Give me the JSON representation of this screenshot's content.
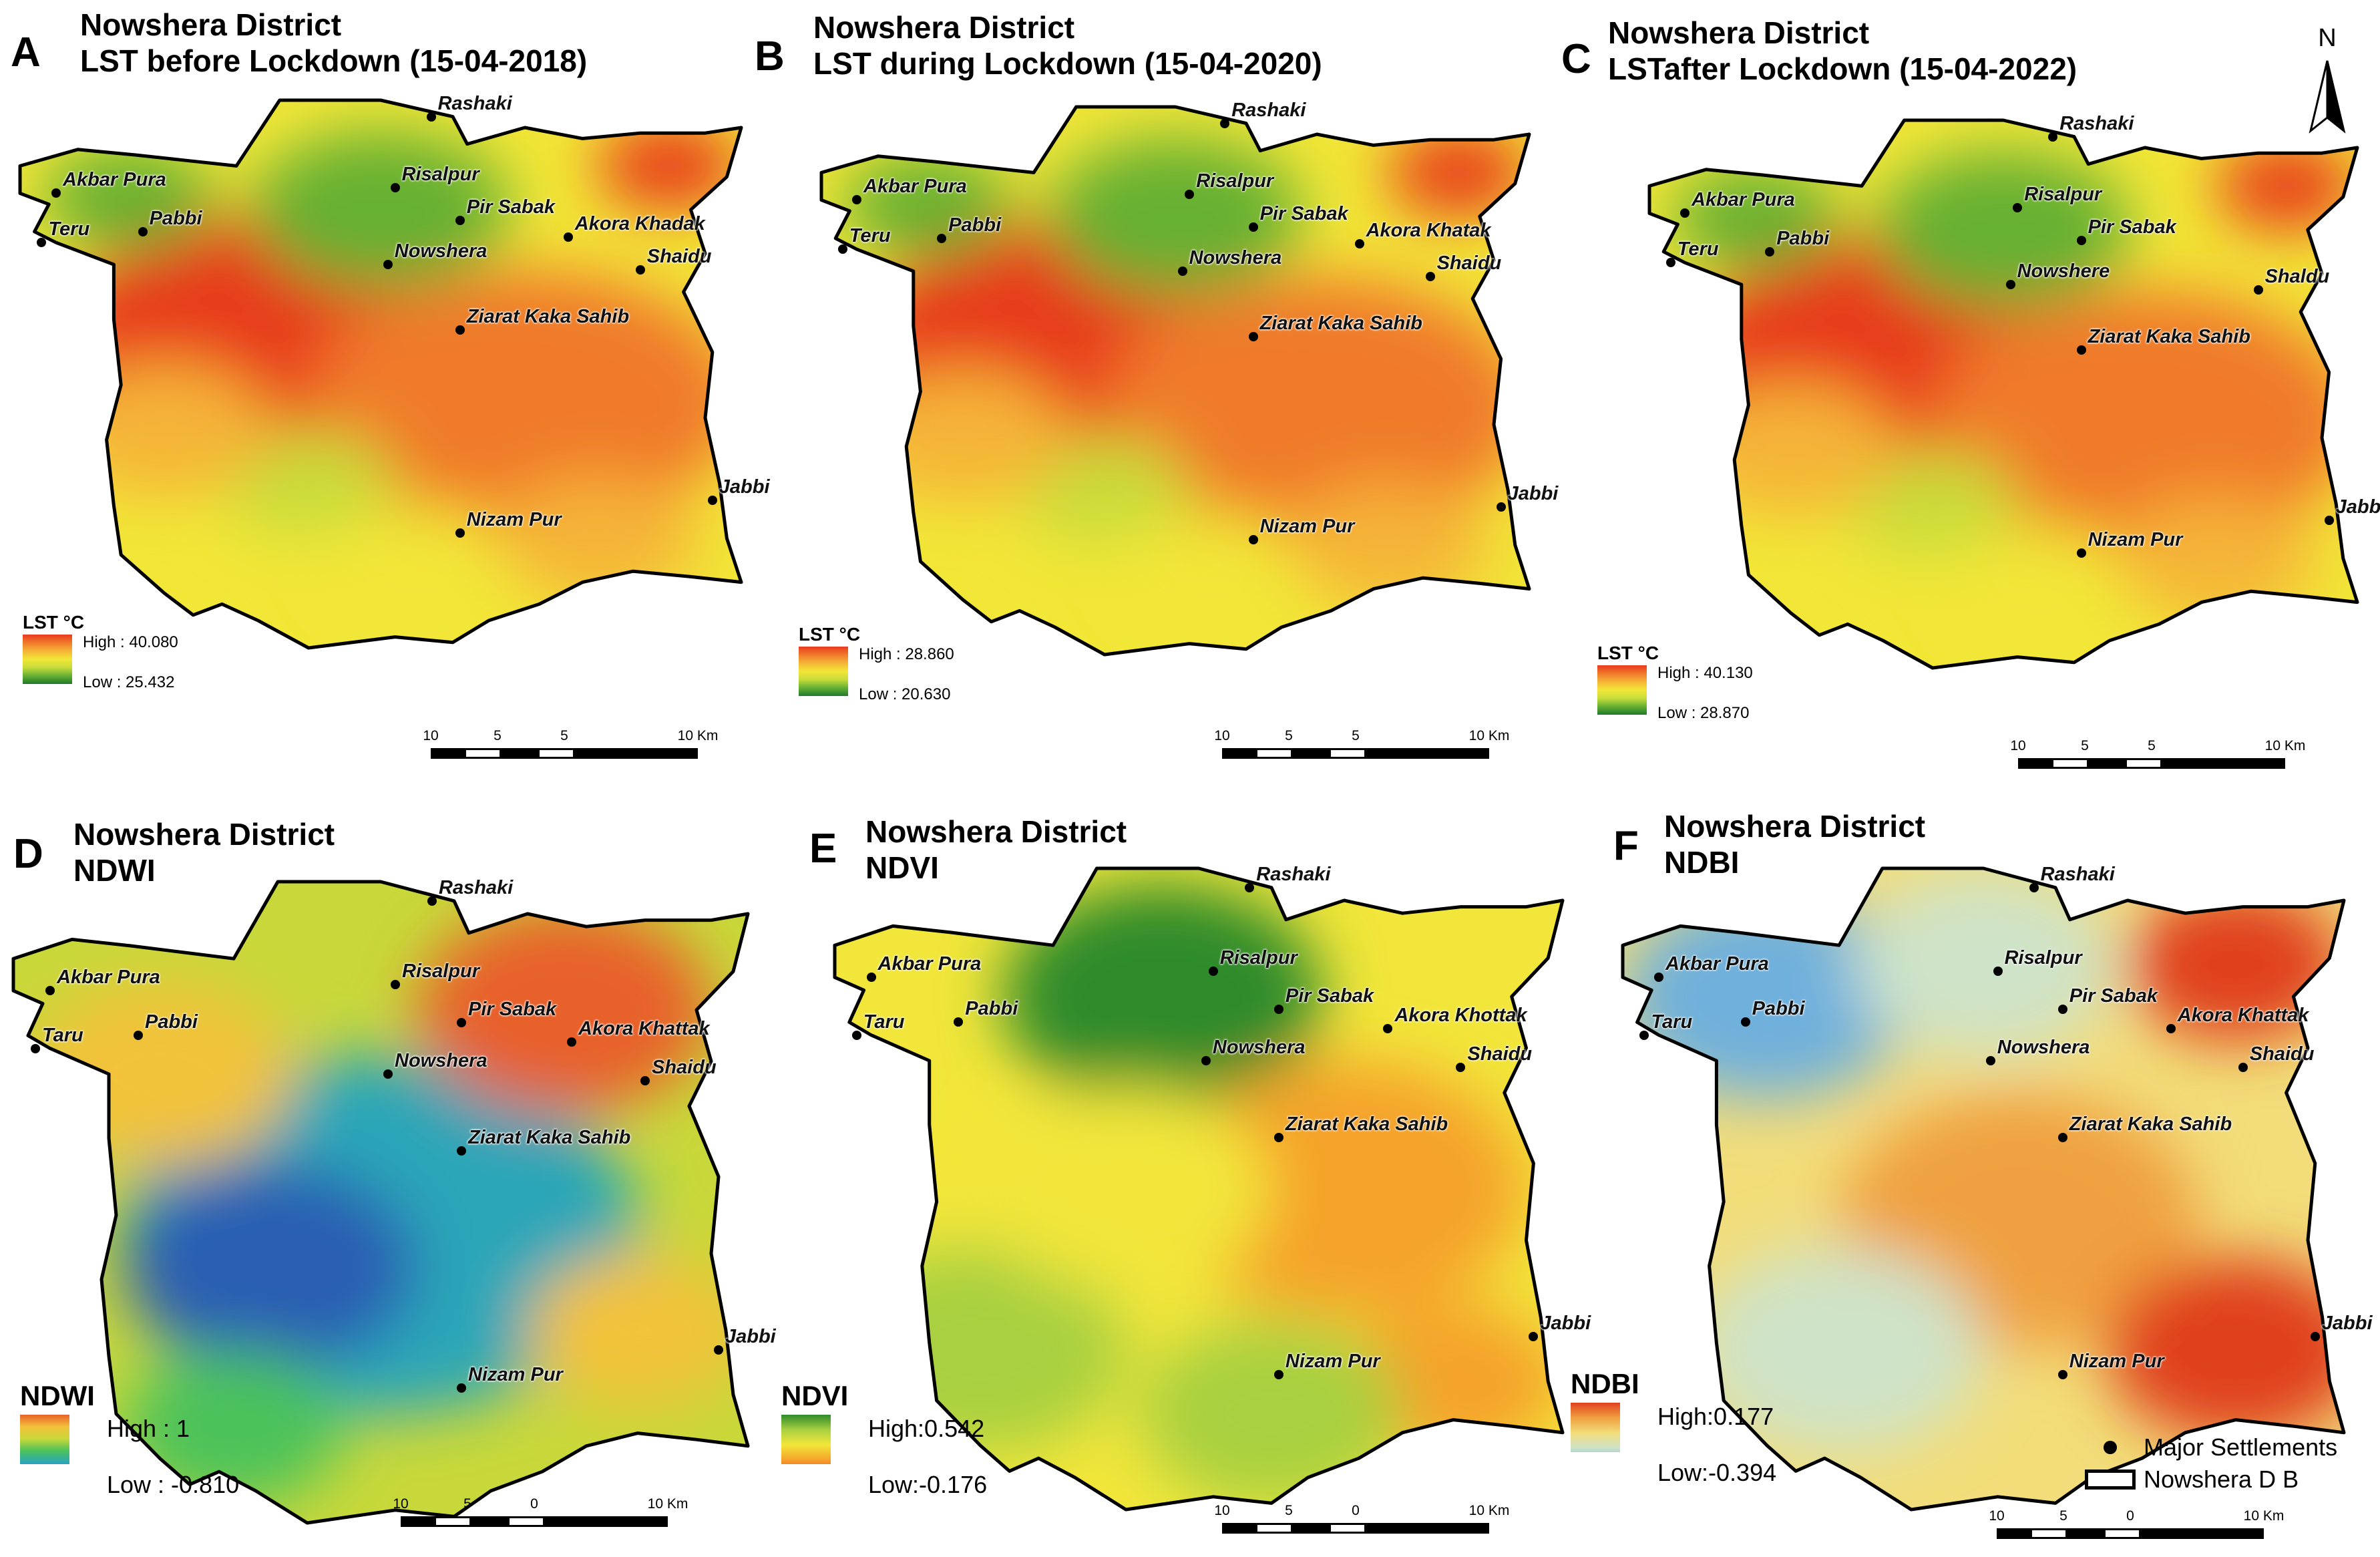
{
  "north_arrow": {
    "label": "N"
  },
  "panels": [
    {
      "id": "A",
      "letter": "A",
      "title_lines": [
        "Nowshera District",
        "LST before Lockdown (15-04-2018)"
      ],
      "palette": "lst",
      "legend": {
        "title": "LST °C",
        "high": "High : 40.080",
        "low": "Low : 25.432"
      },
      "scalebar": {
        "labels": [
          "10",
          "5",
          "5",
          "10 Km"
        ]
      }
    },
    {
      "id": "B",
      "letter": "B",
      "title_lines": [
        "Nowshera District",
        "LST during Lockdown (15-04-2020)"
      ],
      "palette": "lst",
      "legend": {
        "title": "LST °C",
        "high": "High : 28.860",
        "low": "Low : 20.630"
      },
      "scalebar": {
        "labels": [
          "10",
          "5",
          "5",
          "10 Km"
        ]
      }
    },
    {
      "id": "C",
      "letter": "C",
      "title_lines": [
        "Nowshera District",
        "LSTafter Lockdown (15-04-2022)"
      ],
      "palette": "lst",
      "legend": {
        "title": "LST °C",
        "high": "High : 40.130",
        "low": "Low : 28.870"
      },
      "scalebar": {
        "labels": [
          "10",
          "5",
          "5",
          "10 Km"
        ]
      }
    },
    {
      "id": "D",
      "letter": "D",
      "title_lines": [
        "Nowshera District",
        "NDWI"
      ],
      "palette": "ndwi",
      "legend": {
        "title": "NDWI",
        "high": "High : 1",
        "low": "Low : -0.810"
      },
      "scalebar": {
        "labels": [
          "10",
          "5",
          "0",
          "10 Km"
        ]
      }
    },
    {
      "id": "E",
      "letter": "E",
      "title_lines": [
        "Nowshera District",
        "NDVI"
      ],
      "palette": "ndvi",
      "legend": {
        "title": "NDVI",
        "high": "High:0.542",
        "low": "Low:-0.176"
      },
      "scalebar": {
        "labels": [
          "10",
          "5",
          "0",
          "10 Km"
        ]
      }
    },
    {
      "id": "F",
      "letter": "F",
      "title_lines": [
        "Nowshera District",
        "NDBI"
      ],
      "palette": "ndbi",
      "legend": {
        "title": "NDBI",
        "high": "High:0.177",
        "low": "Low:-0.394"
      },
      "scalebar": {
        "labels": [
          "10",
          "5",
          "0",
          "10 Km"
        ]
      }
    }
  ],
  "places_by_panel": {
    "A": [
      "Rashaki",
      "Risalpur",
      "Akbar Pura",
      "Pir Sabak",
      "Teru",
      "Pabbi",
      "Akora Khadak",
      "Nowshera",
      "Shaidu",
      "Ziarat Kaka Sahib",
      "Jabbi",
      "Nizam Pur"
    ],
    "B": [
      "Rashaki",
      "Risalpur",
      "Akbar Pura",
      "Pir Sabak",
      "Teru",
      "Pabbi",
      "Akora Khatak",
      "Nowshera",
      "Shaidu",
      "Ziarat Kaka Sahib",
      "Jabbi",
      "Nizam Pur"
    ],
    "C": [
      "Rashaki",
      "Risalpur",
      "Akbar Pura",
      "Pir Sabak",
      "Teru",
      "Pabbi",
      "Nowshere",
      "Shaldu",
      "Ziarat Kaka Sahib",
      "Jabbi",
      "Nizam Pur"
    ],
    "D": [
      "Rashaki",
      "Risalpur",
      "Akbar Pura",
      "Pir Sabak",
      "Taru",
      "Pabbi",
      "Akora Khattak",
      "Nowshera",
      "Shaidu",
      "Ziarat Kaka Sahib",
      "Jabbi",
      "Nizam Pur"
    ],
    "E": [
      "Rashaki",
      "Risalpur",
      "Akbar Pura",
      "Pir Sabak",
      "Taru",
      "Pabbi",
      "Akora Khottak",
      "Nowshera",
      "Shaidu",
      "Ziarat Kaka Sahib",
      "Jabbi",
      "Nizam Pur"
    ],
    "F": [
      "Rashaki",
      "Risalpur",
      "Akbar Pura",
      "Pir Sabak",
      "Taru",
      "Pabbi",
      "Akora Khattak",
      "Nowshera",
      "Shaidu",
      "Ziarat Kaka Sahib",
      "Jabbi",
      "Nizam Pur"
    ]
  },
  "map_legend": {
    "settlements": "Major Settlements",
    "boundary": "Nowshera D B"
  },
  "palettes": {
    "lst": [
      "#1e7a2a",
      "#66b033",
      "#c8dc3a",
      "#f2e637",
      "#f5b437",
      "#f07a2a",
      "#e83a1e"
    ],
    "ndwi": [
      "#2a5fb3",
      "#2aa6b8",
      "#4cc25a",
      "#c8d83a",
      "#f2c23a",
      "#e8602a"
    ],
    "ndvi": [
      "#e8401e",
      "#f5a32a",
      "#f2e63a",
      "#a8d040",
      "#2e8b2a"
    ],
    "ndbi": [
      "#6fb0dc",
      "#cfe3c8",
      "#f2dd7a",
      "#f0a040",
      "#e0401e"
    ]
  }
}
